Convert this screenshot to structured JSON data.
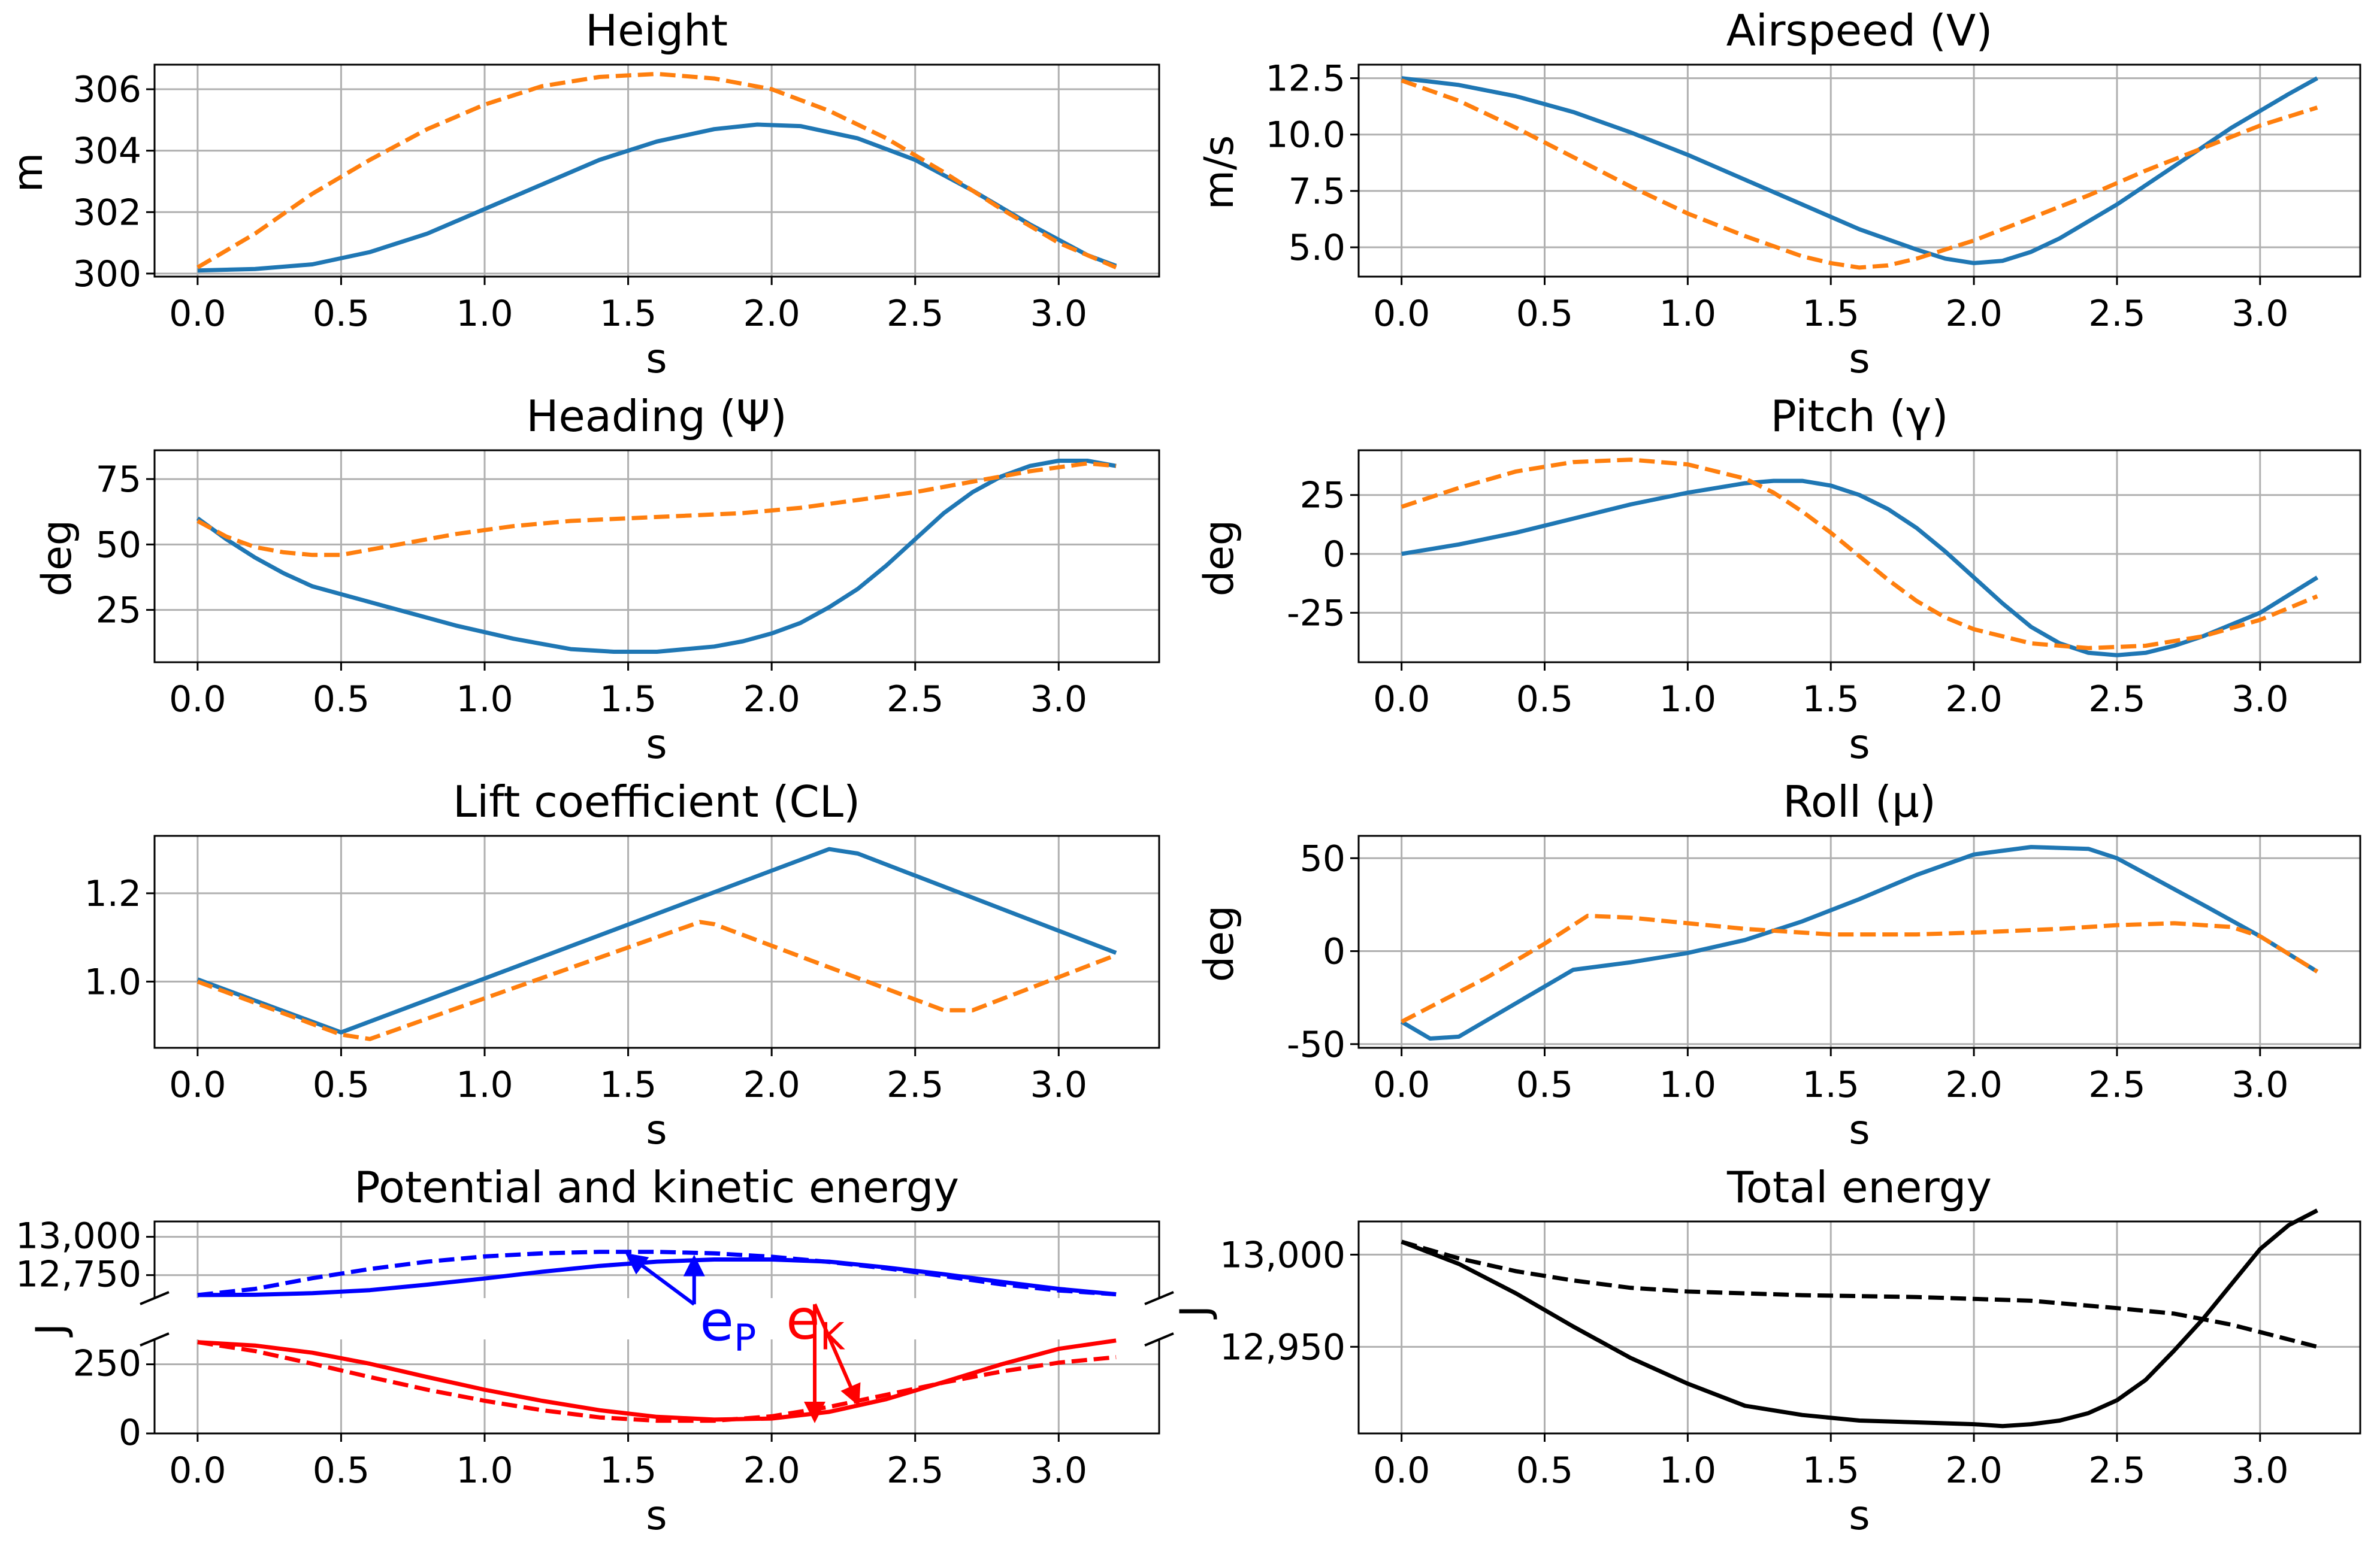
{
  "chart_data": [
    {
      "id": "height",
      "type": "line",
      "title": "Height",
      "xlabel": "s",
      "ylabel": "m",
      "xlim": [
        -0.15,
        3.35
      ],
      "ylim": [
        299.9,
        306.8
      ],
      "xticks": [
        0.0,
        0.5,
        1.0,
        1.5,
        2.0,
        2.5,
        3.0
      ],
      "yticks": [
        300,
        302,
        304,
        306
      ],
      "series": [
        {
          "name": "solid",
          "color": "#1f77b4",
          "dash": "solid",
          "x": [
            0,
            0.2,
            0.4,
            0.6,
            0.8,
            1.0,
            1.2,
            1.4,
            1.6,
            1.8,
            1.95,
            2.1,
            2.3,
            2.5,
            2.7,
            2.9,
            3.1,
            3.2
          ],
          "y": [
            300.1,
            300.15,
            300.3,
            300.7,
            301.3,
            302.1,
            302.9,
            303.7,
            304.3,
            304.7,
            304.85,
            304.8,
            304.4,
            303.7,
            302.7,
            301.6,
            300.6,
            300.25
          ]
        },
        {
          "name": "dashed",
          "color": "#ff7f0e",
          "dash": "dashed",
          "x": [
            0,
            0.2,
            0.4,
            0.6,
            0.8,
            1.0,
            1.2,
            1.4,
            1.6,
            1.8,
            2.0,
            2.2,
            2.4,
            2.6,
            2.8,
            3.0,
            3.2
          ],
          "y": [
            300.2,
            301.3,
            302.6,
            303.7,
            304.7,
            305.5,
            306.1,
            306.4,
            306.5,
            306.35,
            306.0,
            305.3,
            304.4,
            303.3,
            302.1,
            301.0,
            300.2
          ]
        }
      ]
    },
    {
      "id": "airspeed",
      "type": "line",
      "title": "Airspeed (V)",
      "xlabel": "s",
      "ylabel": "m/s",
      "xlim": [
        -0.15,
        3.35
      ],
      "ylim": [
        3.7,
        13.1
      ],
      "xticks": [
        0.0,
        0.5,
        1.0,
        1.5,
        2.0,
        2.5,
        3.0
      ],
      "yticks": [
        5.0,
        7.5,
        10.0,
        12.5
      ],
      "ytick_labels": [
        "5.0",
        "7.5",
        "10.0",
        "12.5"
      ],
      "series": [
        {
          "name": "solid",
          "color": "#1f77b4",
          "dash": "solid",
          "x": [
            0,
            0.2,
            0.4,
            0.6,
            0.8,
            1.0,
            1.2,
            1.4,
            1.6,
            1.8,
            1.9,
            2.0,
            2.1,
            2.2,
            2.3,
            2.5,
            2.7,
            2.9,
            3.1,
            3.2
          ],
          "y": [
            12.5,
            12.2,
            11.7,
            11.0,
            10.1,
            9.1,
            8.0,
            6.9,
            5.8,
            4.9,
            4.5,
            4.3,
            4.4,
            4.8,
            5.4,
            6.9,
            8.6,
            10.3,
            11.8,
            12.5
          ]
        },
        {
          "name": "dashed",
          "color": "#ff7f0e",
          "dash": "dashed",
          "x": [
            0,
            0.2,
            0.4,
            0.6,
            0.8,
            1.0,
            1.2,
            1.4,
            1.5,
            1.6,
            1.7,
            1.8,
            2.0,
            2.2,
            2.4,
            2.6,
            2.8,
            3.0,
            3.2
          ],
          "y": [
            12.4,
            11.5,
            10.3,
            9.0,
            7.7,
            6.5,
            5.5,
            4.6,
            4.3,
            4.1,
            4.2,
            4.5,
            5.3,
            6.3,
            7.3,
            8.4,
            9.4,
            10.4,
            11.2
          ]
        }
      ]
    },
    {
      "id": "heading",
      "type": "line",
      "title": "Heading (Ψ)",
      "xlabel": "s",
      "ylabel": "deg",
      "xlim": [
        -0.15,
        3.35
      ],
      "ylim": [
        5,
        86
      ],
      "xticks": [
        0.0,
        0.5,
        1.0,
        1.5,
        2.0,
        2.5,
        3.0
      ],
      "yticks": [
        25,
        50,
        75
      ],
      "series": [
        {
          "name": "solid",
          "color": "#1f77b4",
          "dash": "solid",
          "x": [
            0,
            0.1,
            0.2,
            0.3,
            0.4,
            0.5,
            0.7,
            0.9,
            1.1,
            1.3,
            1.45,
            1.6,
            1.8,
            1.9,
            2.0,
            2.1,
            2.2,
            2.3,
            2.4,
            2.5,
            2.6,
            2.7,
            2.8,
            2.9,
            3.0,
            3.1,
            3.2
          ],
          "y": [
            60,
            52,
            45,
            39,
            34,
            31,
            25,
            19,
            14,
            10,
            9,
            9,
            11,
            13,
            16,
            20,
            26,
            33,
            42,
            52,
            62,
            70,
            76,
            80,
            82,
            82,
            80
          ]
        },
        {
          "name": "dashed",
          "color": "#ff7f0e",
          "dash": "dashed",
          "x": [
            0,
            0.1,
            0.2,
            0.3,
            0.4,
            0.5,
            0.7,
            0.9,
            1.1,
            1.3,
            1.5,
            1.7,
            1.9,
            2.1,
            2.3,
            2.5,
            2.7,
            2.9,
            3.1,
            3.2
          ],
          "y": [
            59,
            53,
            49,
            47,
            46,
            46,
            50,
            54,
            57,
            59,
            60,
            61,
            62,
            64,
            67,
            70,
            74,
            78,
            81,
            80
          ]
        }
      ]
    },
    {
      "id": "pitch",
      "type": "line",
      "title": "Pitch (γ)",
      "xlabel": "s",
      "ylabel": "deg",
      "xlim": [
        -0.15,
        3.35
      ],
      "ylim": [
        -46,
        44
      ],
      "xticks": [
        0.0,
        0.5,
        1.0,
        1.5,
        2.0,
        2.5,
        3.0
      ],
      "yticks": [
        -25,
        0,
        25
      ],
      "series": [
        {
          "name": "solid",
          "color": "#1f77b4",
          "dash": "solid",
          "x": [
            0,
            0.2,
            0.4,
            0.6,
            0.8,
            1.0,
            1.2,
            1.3,
            1.4,
            1.5,
            1.6,
            1.7,
            1.8,
            1.9,
            2.0,
            2.1,
            2.2,
            2.3,
            2.4,
            2.5,
            2.6,
            2.7,
            2.8,
            3.0,
            3.2
          ],
          "y": [
            0,
            4,
            9,
            15,
            21,
            26,
            30,
            31,
            31,
            29,
            25,
            19,
            11,
            1,
            -10,
            -21,
            -31,
            -38,
            -42,
            -43,
            -42,
            -39,
            -35,
            -25,
            -10
          ]
        },
        {
          "name": "dashed",
          "color": "#ff7f0e",
          "dash": "dashed",
          "x": [
            0,
            0.2,
            0.4,
            0.6,
            0.8,
            1.0,
            1.2,
            1.3,
            1.4,
            1.5,
            1.6,
            1.7,
            1.8,
            1.9,
            2.0,
            2.2,
            2.4,
            2.6,
            2.8,
            3.0,
            3.2
          ],
          "y": [
            20,
            28,
            35,
            39,
            40,
            38,
            32,
            26,
            18,
            9,
            -1,
            -11,
            -20,
            -27,
            -32,
            -38,
            -40,
            -39,
            -35,
            -28,
            -18
          ]
        }
      ]
    },
    {
      "id": "lift",
      "type": "line",
      "title": "Lift coefficient (CL)",
      "xlabel": "s",
      "ylabel": "",
      "xlim": [
        -0.15,
        3.35
      ],
      "ylim": [
        0.85,
        1.33
      ],
      "xticks": [
        0.0,
        0.5,
        1.0,
        1.5,
        2.0,
        2.5,
        3.0
      ],
      "yticks": [
        1.0,
        1.2
      ],
      "ytick_labels": [
        "1.0",
        "1.2"
      ],
      "series": [
        {
          "name": "solid",
          "color": "#1f77b4",
          "dash": "solid",
          "x": [
            0,
            0.5,
            2.2,
            2.3,
            3.2
          ],
          "y": [
            1.005,
            0.885,
            1.3,
            1.29,
            1.065
          ]
        },
        {
          "name": "dashed",
          "color": "#ff7f0e",
          "dash": "dashed",
          "x": [
            0,
            0.5,
            0.6,
            1.75,
            1.8,
            2.6,
            2.7,
            3.2
          ],
          "y": [
            1.0,
            0.88,
            0.87,
            1.135,
            1.13,
            0.935,
            0.935,
            1.06
          ]
        }
      ]
    },
    {
      "id": "roll",
      "type": "line",
      "title": "Roll (μ)",
      "xlabel": "s",
      "ylabel": "deg",
      "xlim": [
        -0.15,
        3.35
      ],
      "ylim": [
        -52,
        62
      ],
      "xticks": [
        0.0,
        0.5,
        1.0,
        1.5,
        2.0,
        2.5,
        3.0
      ],
      "yticks": [
        -50,
        0,
        50
      ],
      "series": [
        {
          "name": "solid",
          "color": "#1f77b4",
          "dash": "solid",
          "x": [
            0,
            0.1,
            0.2,
            0.6,
            0.8,
            1.0,
            1.2,
            1.4,
            1.6,
            1.8,
            2.0,
            2.2,
            2.4,
            2.5,
            2.8,
            3.0,
            3.2
          ],
          "y": [
            -38,
            -47,
            -46,
            -10,
            -6,
            -1,
            6,
            16,
            28,
            41,
            52,
            56,
            55,
            50,
            25,
            8,
            -11
          ]
        },
        {
          "name": "dashed",
          "color": "#ff7f0e",
          "dash": "dashed",
          "x": [
            0,
            0.3,
            0.5,
            0.65,
            0.8,
            1.0,
            1.2,
            1.5,
            1.8,
            2.0,
            2.3,
            2.5,
            2.7,
            2.9,
            3.0,
            3.2
          ],
          "y": [
            -38,
            -14,
            4,
            19,
            18,
            15,
            12,
            9,
            9,
            10,
            12,
            14,
            15,
            13,
            8,
            -11
          ]
        }
      ]
    },
    {
      "id": "energy",
      "type": "line",
      "title": "Potential and kinetic energy",
      "xlabel": "s",
      "ylabel": "J",
      "broken_axis": true,
      "xlim": [
        -0.15,
        3.35
      ],
      "upper_ylim": [
        12600,
        13100
      ],
      "upper_yticks": [
        12750,
        13000
      ],
      "upper_ytick_labels": [
        "12,750",
        "13,000"
      ],
      "lower_ylim": [
        0,
        340
      ],
      "lower_yticks": [
        0,
        250
      ],
      "lower_ytick_labels": [
        "0",
        "250"
      ],
      "xticks": [
        0.0,
        0.5,
        1.0,
        1.5,
        2.0,
        2.5,
        3.0
      ],
      "series": [
        {
          "name": "potential",
          "axis": "upper",
          "color": "#0000ff",
          "dash": "solid",
          "x": [
            0,
            0.2,
            0.4,
            0.6,
            0.8,
            1.0,
            1.2,
            1.4,
            1.6,
            1.8,
            2.0,
            2.2,
            2.4,
            2.6,
            2.8,
            3.0,
            3.2
          ],
          "y": [
            12620,
            12622,
            12632,
            12652,
            12688,
            12728,
            12772,
            12810,
            12838,
            12852,
            12852,
            12838,
            12800,
            12756,
            12706,
            12660,
            12625
          ]
        },
        {
          "name": "potential-ref",
          "axis": "upper",
          "color": "#0000ff",
          "dash": "dashed",
          "x": [
            0,
            0.2,
            0.4,
            0.6,
            0.8,
            1.0,
            1.2,
            1.4,
            1.6,
            1.8,
            2.0,
            2.2,
            2.4,
            2.6,
            2.8,
            3.0,
            3.2
          ],
          "y": [
            12620,
            12660,
            12730,
            12790,
            12838,
            12872,
            12892,
            12902,
            12902,
            12892,
            12870,
            12836,
            12794,
            12744,
            12690,
            12650,
            12625
          ]
        },
        {
          "name": "kinetic",
          "axis": "lower",
          "color": "#ff0000",
          "dash": "solid",
          "x": [
            0,
            0.2,
            0.4,
            0.6,
            0.8,
            1.0,
            1.2,
            1.4,
            1.6,
            1.8,
            2.0,
            2.2,
            2.4,
            2.6,
            2.8,
            3.0,
            3.2
          ],
          "y": [
            330,
            318,
            292,
            252,
            204,
            158,
            118,
            84,
            60,
            50,
            54,
            78,
            124,
            186,
            250,
            306,
            336
          ]
        },
        {
          "name": "kinetic-ref",
          "axis": "lower",
          "color": "#ff0000",
          "dash": "dashed",
          "x": [
            0,
            0.2,
            0.4,
            0.6,
            0.8,
            1.0,
            1.2,
            1.4,
            1.6,
            1.8,
            2.0,
            2.2,
            2.4,
            2.6,
            2.8,
            3.0,
            3.2
          ],
          "y": [
            330,
            298,
            252,
            204,
            158,
            118,
            84,
            58,
            46,
            46,
            62,
            96,
            140,
            184,
            224,
            256,
            276
          ]
        }
      ],
      "annotations": [
        {
          "label_main": "e",
          "label_sub": "P",
          "color": "#0000ff",
          "label_at": [
            1.75,
            12560
          ],
          "arrows": [
            {
              "from": [
                1.73,
                12560
              ],
              "to": [
                1.5,
                12880
              ]
            },
            {
              "from": [
                1.73,
                12560
              ],
              "to": [
                1.73,
                12860
              ]
            }
          ]
        },
        {
          "label_main": "e",
          "label_sub": "K",
          "color": "#ff0000",
          "label_at": [
            2.05,
            12570
          ],
          "arrows": [
            {
              "from": [
                2.15,
                12560
              ],
              "to": [
                2.15,
                50
              ]
            },
            {
              "from": [
                2.15,
                12560
              ],
              "to": [
                2.3,
                110
              ]
            }
          ]
        }
      ]
    },
    {
      "id": "total",
      "type": "line",
      "title": "Total energy",
      "xlabel": "s",
      "ylabel": "J",
      "xlim": [
        -0.15,
        3.35
      ],
      "ylim": [
        12903,
        13018
      ],
      "xticks": [
        0.0,
        0.5,
        1.0,
        1.5,
        2.0,
        2.5,
        3.0
      ],
      "yticks": [
        12950,
        13000
      ],
      "ytick_labels": [
        "12,950",
        "13,000"
      ],
      "series": [
        {
          "name": "solid",
          "color": "#000000",
          "dash": "solid",
          "x": [
            0,
            0.2,
            0.4,
            0.6,
            0.8,
            1.0,
            1.2,
            1.4,
            1.6,
            1.8,
            2.0,
            2.1,
            2.2,
            2.3,
            2.4,
            2.5,
            2.6,
            2.7,
            2.8,
            2.9,
            3.0,
            3.1,
            3.2
          ],
          "y": [
            13007,
            12995,
            12979,
            12961,
            12944,
            12930,
            12918,
            12913,
            12910,
            12909,
            12908,
            12907,
            12908,
            12910,
            12914,
            12921,
            12932,
            12948,
            12965,
            12984,
            13003,
            13016,
            13024
          ]
        },
        {
          "name": "dashed",
          "color": "#000000",
          "dash": "dashed",
          "x": [
            0,
            0.2,
            0.4,
            0.6,
            0.8,
            1.0,
            1.4,
            1.8,
            2.2,
            2.5,
            2.7,
            2.9,
            3.0,
            3.2
          ],
          "y": [
            13007,
            12998,
            12991,
            12986,
            12982,
            12980,
            12978,
            12977,
            12975,
            12971,
            12968,
            12962,
            12958,
            12950
          ]
        }
      ]
    }
  ]
}
